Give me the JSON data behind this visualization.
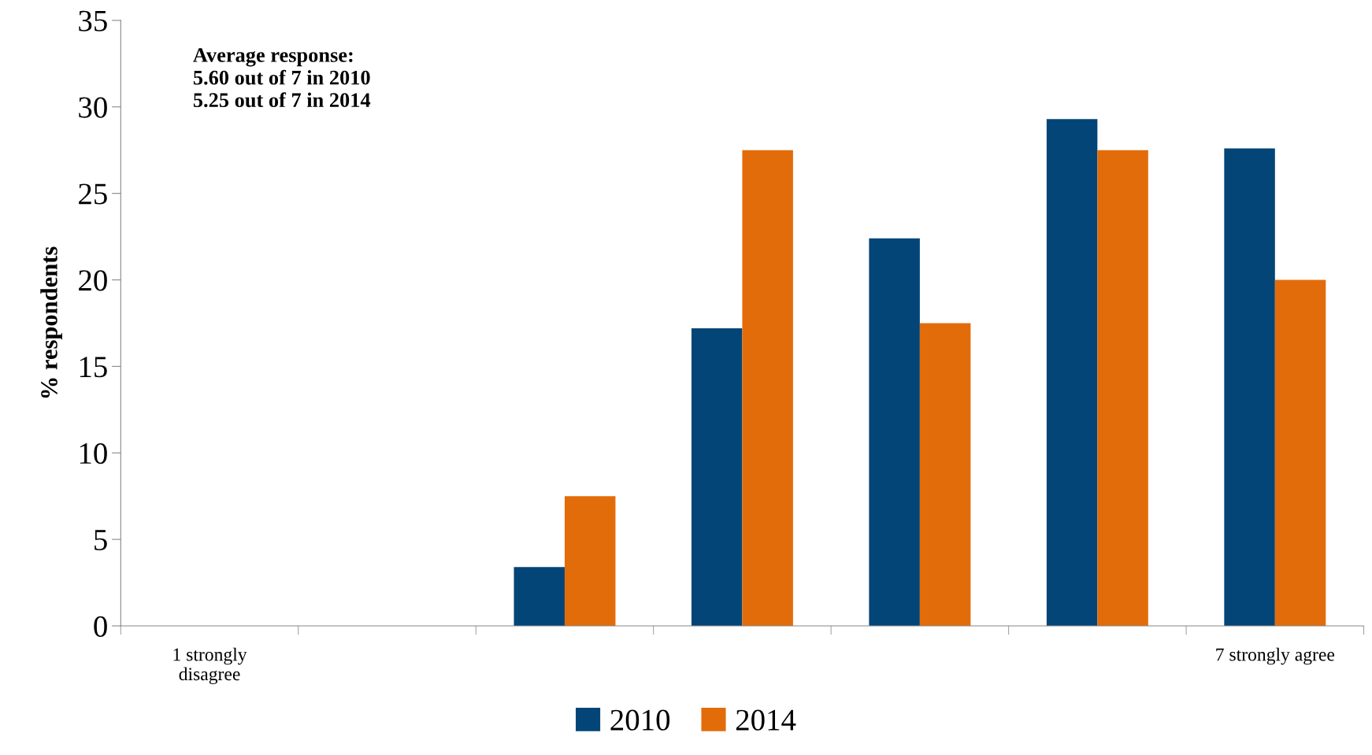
{
  "chart_data": {
    "type": "bar",
    "ylabel": "% respondents",
    "categories": [
      "1 strongly\ndisagree",
      null,
      null,
      null,
      null,
      null,
      "7 strongly agree"
    ],
    "series": [
      {
        "name": "2010",
        "color": "#034577",
        "values": [
          0,
          0,
          3.4,
          17.2,
          22.4,
          29.3,
          27.6
        ]
      },
      {
        "name": "2014",
        "color": "#e36c0a",
        "values": [
          0,
          0,
          7.5,
          27.5,
          17.5,
          27.5,
          20.0
        ]
      }
    ],
    "ylim": [
      0,
      35
    ],
    "yticks": [
      0,
      5,
      10,
      15,
      20,
      25,
      30,
      35
    ],
    "grid": false,
    "legend": "bottom",
    "annotations": [
      "Average response:\n5.60 out of 7 in 2010\n5.25 out of 7 in 2014"
    ]
  }
}
